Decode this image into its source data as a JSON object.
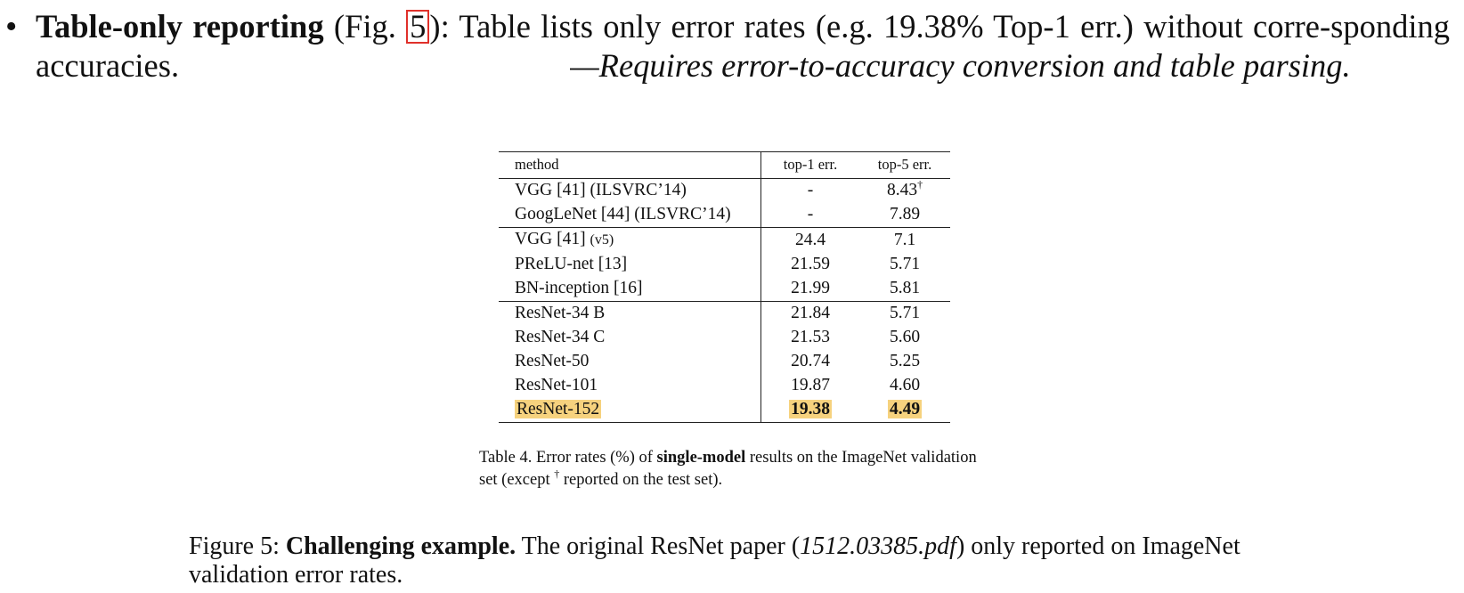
{
  "bullet": {
    "symbol": "•",
    "heading": "Table-only reporting",
    "fig_open": " (Fig. ",
    "fig_ref": "5",
    "fig_close": "):",
    "body": " Table lists only error rates (e.g. 19.38% Top-1 err.) without corre-sponding accuracies.",
    "note": "—Requires error-to-accuracy conversion and table parsing."
  },
  "table": {
    "headers": [
      "method",
      "top-1 err.",
      "top-5 err."
    ],
    "rows": [
      {
        "method": "VGG [41] (ILSVRC’14)",
        "method_suffix": "",
        "top1": "-",
        "top5": "8.43",
        "top5_mark": "†"
      },
      {
        "method": "GoogLeNet [44] (ILSVRC’14)",
        "method_suffix": "",
        "top1": "-",
        "top5": "7.89",
        "top5_mark": ""
      },
      {
        "method": "VGG [41] ",
        "method_suffix": "(v5)",
        "top1": "24.4",
        "top5": "7.1",
        "top5_mark": ""
      },
      {
        "method": "PReLU-net [13]",
        "method_suffix": "",
        "top1": "21.59",
        "top5": "5.71",
        "top5_mark": ""
      },
      {
        "method": "BN-inception [16]",
        "method_suffix": "",
        "top1": "21.99",
        "top5": "5.81",
        "top5_mark": ""
      },
      {
        "method": "ResNet-34 B",
        "method_suffix": "",
        "top1": "21.84",
        "top5": "5.71",
        "top5_mark": ""
      },
      {
        "method": "ResNet-34 C",
        "method_suffix": "",
        "top1": "21.53",
        "top5": "5.60",
        "top5_mark": ""
      },
      {
        "method": "ResNet-50",
        "method_suffix": "",
        "top1": "20.74",
        "top5": "5.25",
        "top5_mark": ""
      },
      {
        "method": "ResNet-101",
        "method_suffix": "",
        "top1": "19.87",
        "top5": "4.60",
        "top5_mark": ""
      },
      {
        "method": "ResNet-152",
        "method_suffix": "",
        "top1": "19.38",
        "top5": "4.49",
        "top5_mark": ""
      }
    ],
    "highlight_color": "#f6d27e"
  },
  "table_caption": {
    "prefix": "Table 4. Error rates (%) of ",
    "bold": "single-model",
    "middle": " results on the ImageNet validation set (except ",
    "mark": "†",
    "suffix": " reported on the test set)."
  },
  "figure_caption": {
    "label": "Figure 5: ",
    "bold": "Challenging example.",
    "text1": " The original ResNet paper (",
    "italic": "1512.03385.pdf",
    "text2": ") only reported on ImageNet validation error rates."
  }
}
